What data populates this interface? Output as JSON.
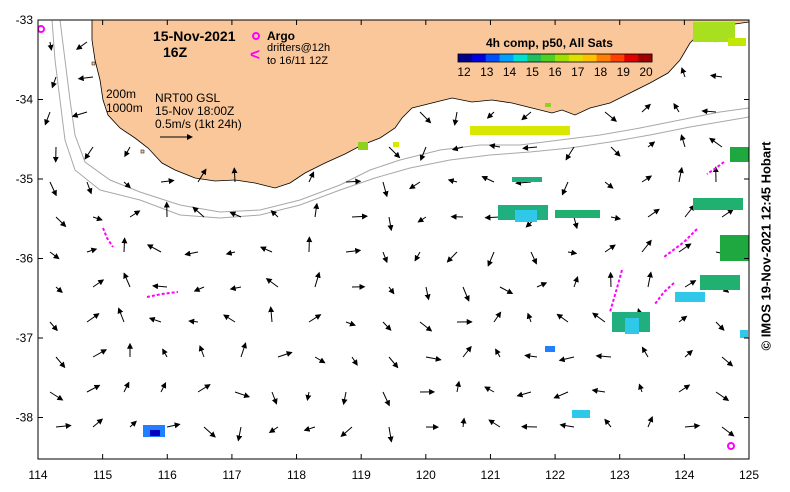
{
  "map": {
    "date": "15-Nov-2021",
    "hour": "16Z",
    "region_bounds": {
      "lon": [
        114,
        125
      ],
      "lat": [
        -38.5,
        -33
      ]
    },
    "colors": {
      "land": "#F9C79A",
      "frame": "#000000",
      "isobath": "#a8a8a8",
      "arrow": "#000000",
      "drifter": "#ff00ff"
    }
  },
  "x_axis": {
    "ticks": [
      "114",
      "115",
      "116",
      "117",
      "118",
      "119",
      "120",
      "121",
      "122",
      "123",
      "124",
      "125"
    ]
  },
  "y_axis": {
    "ticks": [
      "-33",
      "-34",
      "-35",
      "-36",
      "-37",
      "-38"
    ]
  },
  "legend": {
    "argo_symbol": "argo-float-icon",
    "argo_label": "Argo",
    "drifter_symbol": "<",
    "drifter_line1": "drifters@12h",
    "drifter_line2": "to 16/11 12Z",
    "isobath_1": "200m",
    "isobath_2": "1000m",
    "product": "NRT00 GSL",
    "product_time": "15-Nov 18:00Z",
    "scale_label": "0.5m/s (1kt 24h)"
  },
  "colorbar": {
    "title": "4h comp, p50, All Sats",
    "ticks": [
      "12",
      "13",
      "14",
      "15",
      "16",
      "17",
      "18",
      "19",
      "20"
    ],
    "colors": [
      "#00008B",
      "#0000E0",
      "#0050FF",
      "#00A0FF",
      "#00E0D0",
      "#20C060",
      "#50D020",
      "#A0E000",
      "#E0E000",
      "#FFC000",
      "#FF8000",
      "#FF4000",
      "#E00000",
      "#A00000"
    ]
  },
  "credit": "© IMOS 19-Nov-2021 12:45 Hobart"
}
